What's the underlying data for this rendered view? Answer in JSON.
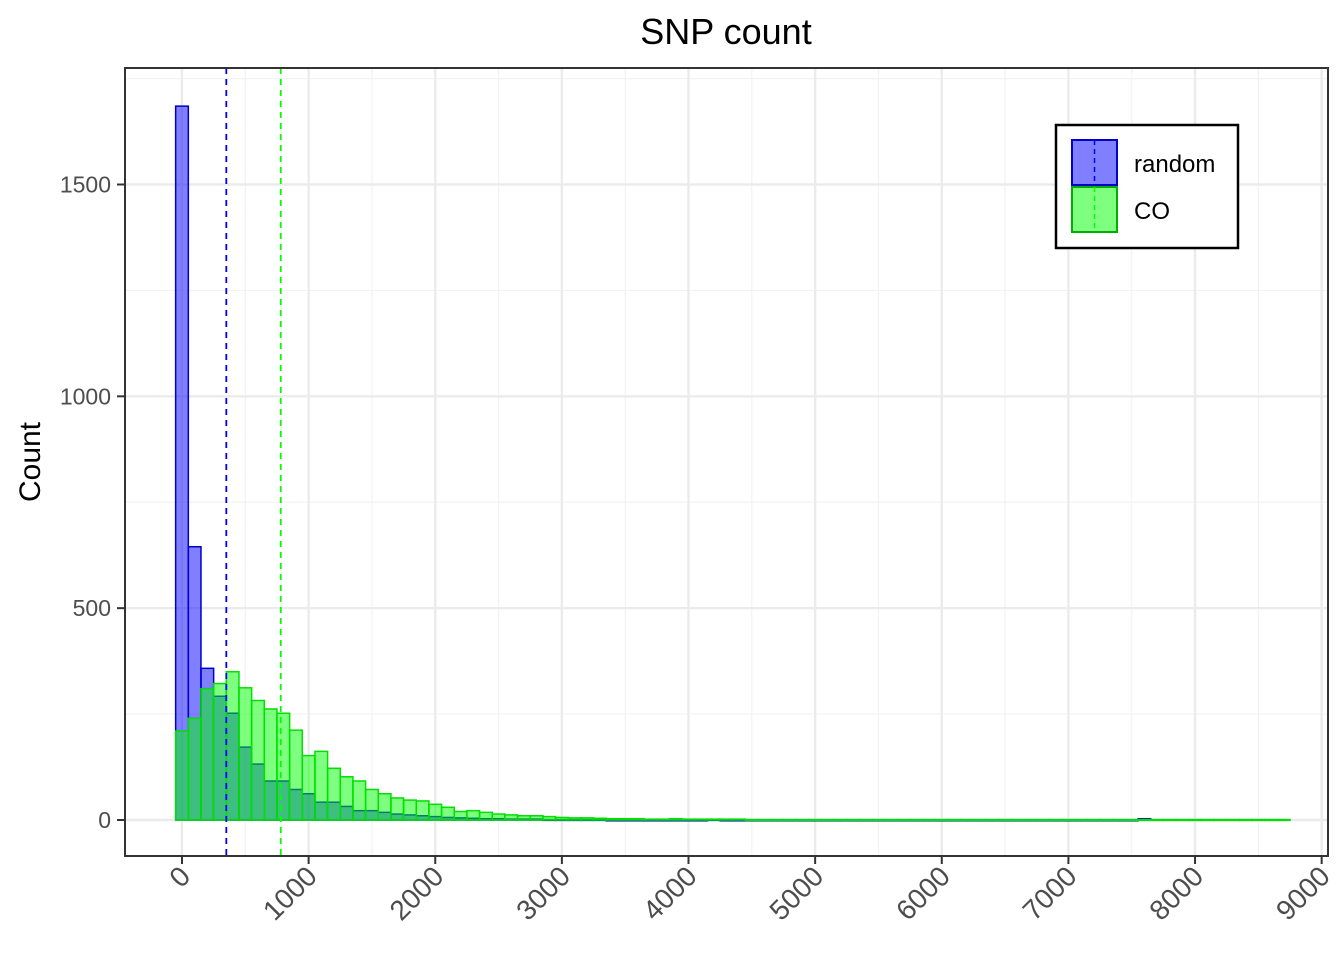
{
  "chart_data": {
    "type": "histogram",
    "title": "SNP count",
    "xlabel": "",
    "ylabel": "Count",
    "xlim": [
      -450,
      9050
    ],
    "ylim": [
      -85,
      1775
    ],
    "x_ticks": [
      0,
      1000,
      2000,
      3000,
      4000,
      5000,
      6000,
      7000,
      8000,
      9000
    ],
    "y_ticks": [
      0,
      500,
      1000,
      1500
    ],
    "bin_start": -50,
    "bin_width": 100,
    "grid": true,
    "legend_position": "top-right",
    "series": [
      {
        "name": "random",
        "fill": "#0000ff",
        "stroke": "#0000cc",
        "mean": 350,
        "values": [
          1685,
          645,
          358,
          292,
          252,
          172,
          132,
          92,
          92,
          72,
          62,
          42,
          42,
          32,
          22,
          22,
          18,
          14,
          12,
          10,
          8,
          6,
          5,
          4,
          3,
          3,
          2,
          2,
          2,
          1,
          1,
          1,
          1,
          1,
          0,
          0,
          0,
          0,
          0,
          0,
          0,
          0,
          1,
          0,
          0,
          0,
          0,
          0,
          0,
          0,
          0,
          0,
          0,
          0,
          0,
          0,
          0,
          0,
          0,
          0,
          0,
          0,
          0,
          0,
          0,
          0,
          0,
          0,
          0,
          0,
          0,
          0,
          0,
          0,
          0,
          0,
          3
        ]
      },
      {
        "name": "CO",
        "fill": "#00ff00",
        "stroke": "#00e000",
        "mean": 780,
        "values": [
          210,
          240,
          310,
          322,
          350,
          312,
          282,
          262,
          252,
          212,
          152,
          162,
          122,
          102,
          92,
          72,
          62,
          52,
          47,
          45,
          37,
          30,
          20,
          22,
          18,
          14,
          12,
          10,
          10,
          8,
          6,
          5,
          5,
          4,
          3,
          3,
          3,
          2,
          2,
          3,
          2,
          2,
          2,
          2,
          2,
          1,
          1,
          1,
          1,
          1,
          1,
          1,
          1,
          1,
          1,
          1,
          1,
          1,
          1,
          1,
          1,
          1,
          1,
          1,
          1,
          1,
          1,
          1,
          1,
          1,
          1,
          1,
          1,
          1,
          1,
          1,
          1,
          1,
          1,
          1,
          1,
          1,
          1,
          1,
          1,
          1,
          1,
          1
        ]
      }
    ]
  }
}
